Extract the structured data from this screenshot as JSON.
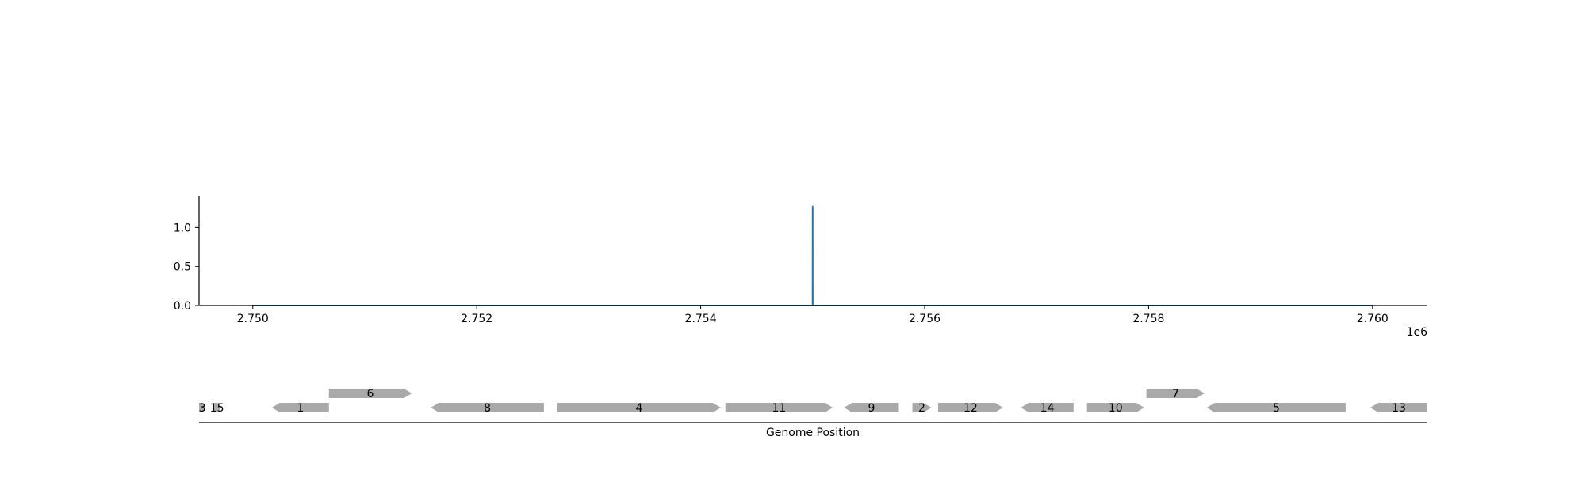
{
  "chart_data": [
    {
      "type": "line",
      "title": "",
      "xlabel": "",
      "ylabel": "",
      "x_offset_label": "1e6",
      "xlim": [
        2749520,
        2760490
      ],
      "ylim": [
        0,
        1.4
      ],
      "x_ticks": [
        2750000,
        2752000,
        2754000,
        2756000,
        2758000,
        2760000
      ],
      "x_tick_labels": [
        "2.750",
        "2.752",
        "2.754",
        "2.756",
        "2.758",
        "2.760"
      ],
      "y_ticks": [
        0,
        0.5,
        1.0
      ],
      "y_tick_labels": [
        "0.0",
        "0.5",
        "1.0"
      ],
      "grid": false,
      "series": [
        {
          "color": "#1f77b4",
          "x": [
            2750000,
            2754999,
            2755000,
            2755001,
            2760000
          ],
          "y": [
            0,
            0,
            1.28,
            0,
            0
          ]
        }
      ]
    },
    {
      "type": "gene_track",
      "xlabel": "Genome Position",
      "xlim": [
        2749520,
        2760490
      ],
      "gene_color": "#a9a9a9",
      "genes": [
        {
          "label": "3",
          "start": 2749520,
          "end": 2749580,
          "strand": 1,
          "row": 0
        },
        {
          "label": "15",
          "start": 2749640,
          "end": 2749720,
          "strand": 1,
          "row": 0
        },
        {
          "label": "1",
          "start": 2750170,
          "end": 2750680,
          "strand": -1,
          "row": 0
        },
        {
          "label": "6",
          "start": 2750680,
          "end": 2751420,
          "strand": 1,
          "row": 1
        },
        {
          "label": "8",
          "start": 2751590,
          "end": 2752600,
          "strand": -1,
          "row": 0
        },
        {
          "label": "4",
          "start": 2752720,
          "end": 2754180,
          "strand": 1,
          "row": 0
        },
        {
          "label": "11",
          "start": 2754220,
          "end": 2755180,
          "strand": 1,
          "row": 0
        },
        {
          "label": "9",
          "start": 2755280,
          "end": 2755770,
          "strand": -1,
          "row": 0
        },
        {
          "label": "2",
          "start": 2755890,
          "end": 2756060,
          "strand": 1,
          "row": 0
        },
        {
          "label": "12",
          "start": 2756120,
          "end": 2756700,
          "strand": 1,
          "row": 0
        },
        {
          "label": "14",
          "start": 2756860,
          "end": 2757330,
          "strand": -1,
          "row": 0
        },
        {
          "label": "10",
          "start": 2757450,
          "end": 2757960,
          "strand": 1,
          "row": 0
        },
        {
          "label": "7",
          "start": 2757980,
          "end": 2758500,
          "strand": 1,
          "row": 1
        },
        {
          "label": "5",
          "start": 2758520,
          "end": 2759760,
          "strand": -1,
          "row": 0
        },
        {
          "label": "13",
          "start": 2759980,
          "end": 2760490,
          "strand": -1,
          "row": 0
        }
      ]
    }
  ]
}
